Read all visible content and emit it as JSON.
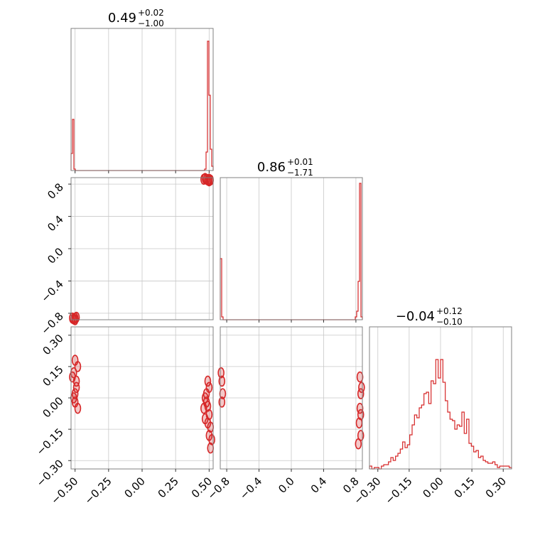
{
  "chart_data": {
    "type": "corner",
    "color": "#d62728",
    "parameters": [
      {
        "title_value": "0.49",
        "err_plus": "+0.02",
        "err_minus": "−1.00",
        "range": [
          -0.53,
          0.53
        ]
      },
      {
        "title_value": "0.86",
        "err_plus": "+0.01",
        "err_minus": "−1.71",
        "range": [
          -0.88,
          0.88
        ]
      },
      {
        "title_value": "−0.04",
        "err_plus": "+0.12",
        "err_minus": "−0.10",
        "range": [
          -0.34,
          0.34
        ]
      }
    ],
    "ticks": [
      {
        "values": [
          -0.5,
          -0.25,
          0.0,
          0.25,
          0.5
        ],
        "labels": [
          "−0.50",
          "−0.25",
          "0.00",
          "0.25",
          "0.50"
        ]
      },
      {
        "values": [
          -0.8,
          -0.4,
          0.0,
          0.4,
          0.8
        ],
        "labels": [
          "−0.8",
          "−0.4",
          "0.0",
          "0.4",
          "0.8"
        ]
      },
      {
        "values": [
          -0.3,
          -0.15,
          0.0,
          0.15,
          0.3
        ],
        "labels": [
          "−0.30",
          "−0.15",
          "0.00",
          "0.15",
          "0.30"
        ]
      }
    ],
    "histograms": [
      {
        "counts": [
          0.12,
          0.36,
          0.01,
          0,
          0,
          0,
          0,
          0,
          0,
          0,
          0,
          0,
          0,
          0,
          0,
          0,
          0,
          0,
          0,
          0,
          0,
          0,
          0,
          0,
          0,
          0,
          0,
          0,
          0,
          0,
          0,
          0,
          0,
          0,
          0,
          0,
          0,
          0,
          0,
          0,
          0,
          0,
          0,
          0,
          0,
          0,
          0,
          0,
          0,
          0,
          0,
          0,
          0,
          0,
          0,
          0,
          0,
          0,
          0,
          0,
          0,
          0,
          0,
          0,
          0,
          0,
          0,
          0,
          0,
          0,
          0,
          0,
          0,
          0,
          0,
          0,
          0,
          0,
          0,
          0,
          0,
          0,
          0,
          0,
          0,
          0,
          0,
          0,
          0,
          0,
          0,
          0,
          0,
          0,
          0.01,
          0.13,
          0.91,
          0.53,
          0.15,
          0.03
        ]
      },
      {
        "counts": [
          0.43,
          0.02,
          0,
          0,
          0,
          0,
          0,
          0,
          0,
          0,
          0,
          0,
          0,
          0,
          0,
          0,
          0,
          0,
          0,
          0,
          0,
          0,
          0,
          0,
          0,
          0,
          0,
          0,
          0,
          0,
          0,
          0,
          0,
          0,
          0,
          0,
          0,
          0,
          0,
          0,
          0,
          0,
          0,
          0,
          0,
          0,
          0,
          0,
          0,
          0,
          0,
          0,
          0,
          0,
          0,
          0,
          0,
          0,
          0,
          0,
          0,
          0,
          0,
          0,
          0,
          0,
          0,
          0,
          0,
          0,
          0,
          0,
          0,
          0,
          0,
          0,
          0,
          0,
          0,
          0,
          0,
          0,
          0,
          0,
          0,
          0,
          0,
          0,
          0,
          0,
          0,
          0,
          0,
          0,
          0,
          0.02,
          0.06,
          0.27,
          0.96,
          0.02
        ]
      },
      {
        "counts": [
          0.02,
          0,
          0.01,
          0.01,
          0,
          0.02,
          0.03,
          0.03,
          0.05,
          0.08,
          0.06,
          0.09,
          0.11,
          0.14,
          0.19,
          0.15,
          0.17,
          0.24,
          0.31,
          0.38,
          0.36,
          0.43,
          0.45,
          0.53,
          0.54,
          0.46,
          0.62,
          0.6,
          0.77,
          0.64,
          0.77,
          0.61,
          0.48,
          0.4,
          0.35,
          0.34,
          0.28,
          0.31,
          0.3,
          0.4,
          0.25,
          0.35,
          0.18,
          0.16,
          0.12,
          0.13,
          0.08,
          0.09,
          0.06,
          0.05,
          0.04,
          0.04,
          0.05,
          0.03,
          0.01,
          0.02,
          0.02,
          0.02,
          0.02,
          0.01
        ]
      }
    ],
    "scatter_points": {
      "p1_vs_p0": [
        [
          0.48,
          0.86
        ],
        [
          0.49,
          0.85
        ],
        [
          0.5,
          0.84
        ],
        [
          0.47,
          0.87
        ],
        [
          0.51,
          0.85
        ],
        [
          0.5,
          0.86
        ],
        [
          0.46,
          0.86
        ],
        [
          -0.5,
          -0.86
        ],
        [
          -0.51,
          -0.87
        ],
        [
          -0.49,
          -0.85
        ],
        [
          -0.5,
          -0.88
        ],
        [
          -0.52,
          -0.86
        ]
      ],
      "p2_vs_p0": [
        [
          0.49,
          -0.04
        ],
        [
          0.48,
          0.02
        ],
        [
          0.5,
          -0.08
        ],
        [
          0.47,
          -0.1
        ],
        [
          0.49,
          0.08
        ],
        [
          0.51,
          -0.14
        ],
        [
          0.5,
          -0.18
        ],
        [
          0.48,
          -0.02
        ],
        [
          0.52,
          -0.2
        ],
        [
          0.46,
          -0.05
        ],
        [
          0.5,
          0.05
        ],
        [
          0.51,
          -0.24
        ],
        [
          0.49,
          -0.12
        ],
        [
          0.47,
          0.0
        ],
        [
          -0.49,
          0.08
        ],
        [
          -0.5,
          0.02
        ],
        [
          -0.51,
          0.12
        ],
        [
          -0.48,
          0.15
        ],
        [
          -0.5,
          -0.02
        ],
        [
          -0.49,
          0.05
        ],
        [
          -0.52,
          0.1
        ],
        [
          -0.5,
          0.18
        ],
        [
          -0.48,
          -0.05
        ],
        [
          -0.51,
          0.0
        ]
      ],
      "p2_vs_p1": [
        [
          0.85,
          -0.05
        ],
        [
          0.86,
          0.02
        ],
        [
          0.84,
          -0.12
        ],
        [
          0.87,
          0.05
        ],
        [
          0.86,
          -0.18
        ],
        [
          0.85,
          0.1
        ],
        [
          0.83,
          -0.22
        ],
        [
          0.86,
          -0.08
        ],
        [
          -0.86,
          0.08
        ],
        [
          -0.85,
          0.02
        ],
        [
          -0.87,
          0.12
        ],
        [
          -0.86,
          -0.02
        ]
      ]
    }
  }
}
